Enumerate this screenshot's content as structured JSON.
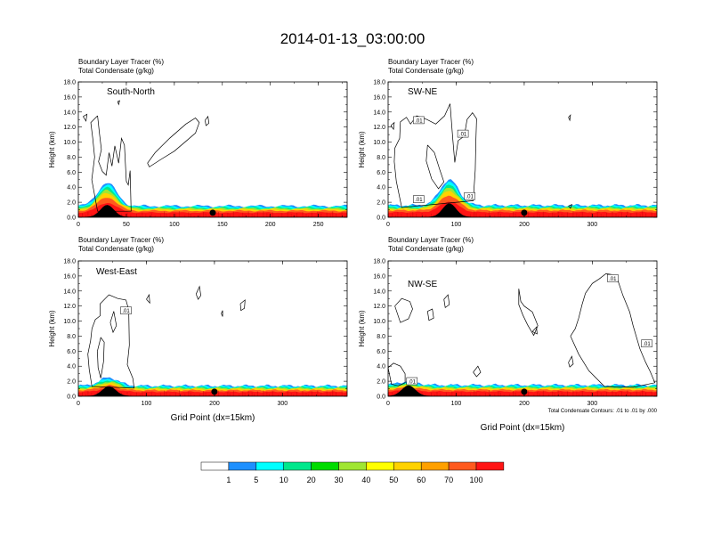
{
  "title": "2014-01-13_03:00:00",
  "colors": {
    "fill_scale": [
      "#ffffff",
      "#1e90ff",
      "#00ffff",
      "#00e88c",
      "#00dc00",
      "#a0e632",
      "#ffff00",
      "#ffd200",
      "#ffa000",
      "#ff5a1e",
      "#ff1414"
    ],
    "contour": "#000000",
    "axis": "#000000"
  },
  "chart_data": [
    {
      "type": "heatmap",
      "name": "south-north",
      "title_line1": "Boundary Layer Tracer   (%)",
      "title_line2": "Total Condensate   (g/kg)",
      "panel_label": "South-North",
      "ylabel": "Height (km)",
      "xlabel": "",
      "xlim": [
        0,
        280
      ],
      "ylim": [
        0,
        18
      ],
      "xticks": [
        0,
        50,
        100,
        150,
        200,
        250
      ],
      "xtick_labels": [
        "0",
        "50",
        "100",
        "150",
        "200",
        "250"
      ],
      "yticks": [
        0,
        2,
        4,
        6,
        8,
        10,
        12,
        14,
        16,
        18
      ],
      "ytick_labels": [
        "0.0",
        "2.0",
        "4.0",
        "6.0",
        "8.0",
        "10.0",
        "12.0",
        "14.0",
        "16.0",
        "18.0"
      ],
      "marker_x": 140,
      "terrain_bump": {
        "x": 30,
        "height": 1.6
      },
      "plume": {
        "x": 30,
        "height": 4.6
      },
      "bl_height": 1.5,
      "contour_labels": [],
      "footnote": ""
    },
    {
      "type": "heatmap",
      "name": "sw-ne",
      "title_line1": "Boundary Layer Tracer   (%)",
      "title_line2": "Total Condensate   (g/kg)",
      "panel_label": "SW-NE",
      "ylabel": "Height (km)",
      "xlabel": "",
      "xlim": [
        0,
        395
      ],
      "ylim": [
        0,
        18
      ],
      "xticks": [
        0,
        100,
        200,
        300
      ],
      "xtick_labels": [
        "0",
        "100",
        "200",
        "300"
      ],
      "yticks": [
        0,
        2,
        4,
        6,
        8,
        10,
        12,
        14,
        16,
        18
      ],
      "ytick_labels": [
        "0.0",
        "2.0",
        "4.0",
        "6.0",
        "8.0",
        "10.0",
        "12.0",
        "14.0",
        "16.0",
        "18.0"
      ],
      "marker_x": 200,
      "terrain_bump": {
        "x": 90,
        "height": 1.8
      },
      "plume": {
        "x": 90,
        "height": 5.0
      },
      "bl_height": 1.6,
      "contour_labels": [
        {
          "text": ".01",
          "x": 45,
          "y": 12.8
        },
        {
          "text": ".01",
          "x": 110,
          "y": 11.0
        },
        {
          "text": ".01",
          "x": 45,
          "y": 2.3
        },
        {
          "text": ".01",
          "x": 120,
          "y": 2.7
        }
      ],
      "footnote": ""
    },
    {
      "type": "heatmap",
      "name": "west-east",
      "title_line1": "Boundary Layer Tracer   (%)",
      "title_line2": "Total Condensate   (g/kg)",
      "panel_label": "West-East",
      "ylabel": "Height (km)",
      "xlabel": "Grid Point (dx=15km)",
      "xlim": [
        0,
        395
      ],
      "ylim": [
        0,
        18
      ],
      "xticks": [
        0,
        100,
        200,
        300
      ],
      "xtick_labels": [
        "0",
        "100",
        "200",
        "300"
      ],
      "yticks": [
        0,
        2,
        4,
        6,
        8,
        10,
        12,
        14,
        16,
        18
      ],
      "ytick_labels": [
        "0.0",
        "2.0",
        "4.0",
        "6.0",
        "8.0",
        "10.0",
        "12.0",
        "14.0",
        "16.0",
        "18.0"
      ],
      "marker_x": 200,
      "terrain_bump": {
        "x": 45,
        "height": 1.3
      },
      "plume": {
        "x": 45,
        "height": 2.5
      },
      "bl_height": 1.4,
      "contour_labels": [
        {
          "text": ".01",
          "x": 70,
          "y": 11.3
        }
      ],
      "footnote": ""
    },
    {
      "type": "heatmap",
      "name": "nw-se",
      "title_line1": "Boundary Layer Tracer   (%)",
      "title_line2": "Total Condensate   (g/kg)",
      "panel_label": "NW-SE",
      "ylabel": "Height (km)",
      "xlabel": "Grid Point (dx=15km)",
      "xlim": [
        0,
        395
      ],
      "ylim": [
        0,
        18
      ],
      "xticks": [
        0,
        100,
        200,
        300
      ],
      "xtick_labels": [
        "0",
        "100",
        "200",
        "300"
      ],
      "yticks": [
        0,
        2,
        4,
        6,
        8,
        10,
        12,
        14,
        16,
        18
      ],
      "ytick_labels": [
        "0.0",
        "2.0",
        "4.0",
        "6.0",
        "8.0",
        "10.0",
        "12.0",
        "14.0",
        "16.0",
        "18.0"
      ],
      "marker_x": 200,
      "terrain_bump": {
        "x": 30,
        "height": 1.4
      },
      "plume": {
        "x": 30,
        "height": 2.0
      },
      "bl_height": 1.5,
      "contour_labels": [
        {
          "text": ".01",
          "x": 330,
          "y": 15.6
        },
        {
          "text": ".01",
          "x": 380,
          "y": 6.9
        },
        {
          "text": ".01",
          "x": 35,
          "y": 1.9
        }
      ],
      "footnote": "Total Condensate Contours: .01 to .01 by .000"
    }
  ],
  "colorbar": {
    "labels": [
      "1",
      "5",
      "10",
      "20",
      "30",
      "40",
      "50",
      "60",
      "70",
      "100"
    ]
  }
}
